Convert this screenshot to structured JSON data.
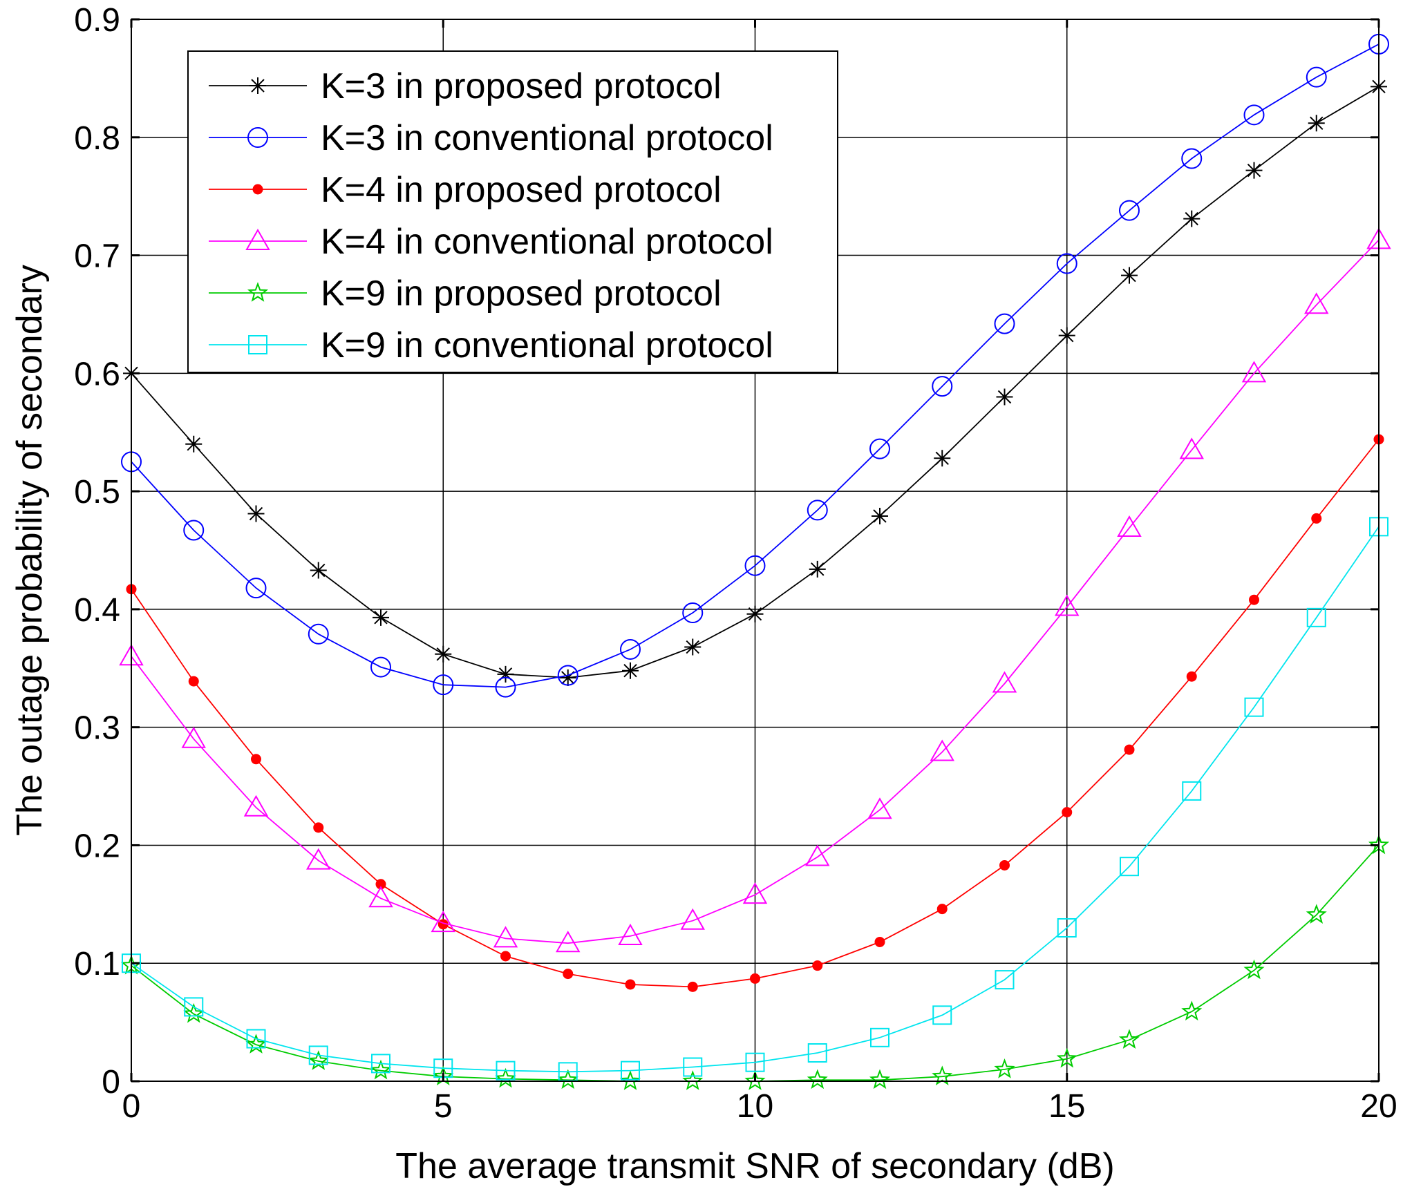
{
  "chart_data": {
    "type": "line",
    "title": "",
    "xlabel": "The average transmit SNR of secondary (dB)",
    "ylabel": "The outage probability of secondary",
    "xlim": [
      0,
      20
    ],
    "ylim": [
      0,
      0.9
    ],
    "xticks": [
      0,
      5,
      10,
      15,
      20
    ],
    "xtick_labels": [
      "0",
      "5",
      "10",
      "15",
      "20"
    ],
    "yticks": [
      0,
      0.1,
      0.2,
      0.3,
      0.4,
      0.5,
      0.6,
      0.7,
      0.8,
      0.9
    ],
    "ytick_labels": [
      "0",
      "0.1",
      "0.2",
      "0.3",
      "0.4",
      "0.5",
      "0.6",
      "0.7",
      "0.8",
      "0.9"
    ],
    "grid": true,
    "legend_position": "top-left",
    "x": [
      0,
      1,
      2,
      3,
      4,
      5,
      6,
      7,
      8,
      9,
      10,
      11,
      12,
      13,
      14,
      15,
      16,
      17,
      18,
      19,
      20
    ],
    "series": [
      {
        "name": "K=3 in proposed protocol",
        "color": "#000000",
        "marker": "asterisk",
        "values": [
          0.6,
          0.54,
          0.481,
          0.433,
          0.393,
          0.362,
          0.345,
          0.342,
          0.348,
          0.368,
          0.396,
          0.434,
          0.479,
          0.528,
          0.58,
          0.632,
          0.683,
          0.731,
          0.772,
          0.812,
          0.843
        ]
      },
      {
        "name": "K=3 in conventional protocol",
        "color": "#0000FF",
        "marker": "circle",
        "values": [
          0.525,
          0.467,
          0.418,
          0.379,
          0.351,
          0.336,
          0.334,
          0.344,
          0.366,
          0.397,
          0.437,
          0.484,
          0.536,
          0.589,
          0.642,
          0.693,
          0.738,
          0.782,
          0.819,
          0.851,
          0.879
        ]
      },
      {
        "name": "K=4 in proposed protocol",
        "color": "#FF0000",
        "marker": "filled-circle",
        "values": [
          0.417,
          0.339,
          0.273,
          0.215,
          0.167,
          0.133,
          0.106,
          0.091,
          0.082,
          0.08,
          0.087,
          0.098,
          0.118,
          0.146,
          0.183,
          0.228,
          0.281,
          0.343,
          0.408,
          0.477,
          0.544
        ]
      },
      {
        "name": "K=4 in conventional protocol",
        "color": "#FF00FF",
        "marker": "triangle",
        "values": [
          0.36,
          0.29,
          0.232,
          0.187,
          0.155,
          0.134,
          0.121,
          0.117,
          0.123,
          0.136,
          0.158,
          0.19,
          0.23,
          0.279,
          0.337,
          0.402,
          0.469,
          0.535,
          0.6,
          0.658,
          0.713
        ]
      },
      {
        "name": "K=9 in proposed protocol",
        "color": "#00CC00",
        "marker": "pentagram",
        "values": [
          0.098,
          0.057,
          0.031,
          0.017,
          0.009,
          0.004,
          0.002,
          0.001,
          0.0,
          0.0,
          0.0,
          0.001,
          0.001,
          0.004,
          0.01,
          0.019,
          0.035,
          0.059,
          0.094,
          0.141,
          0.2
        ]
      },
      {
        "name": "K=9 in conventional protocol",
        "color": "#00E5EE",
        "marker": "square",
        "values": [
          0.1,
          0.063,
          0.036,
          0.022,
          0.015,
          0.011,
          0.009,
          0.008,
          0.009,
          0.012,
          0.016,
          0.024,
          0.037,
          0.056,
          0.086,
          0.13,
          0.182,
          0.246,
          0.317,
          0.393,
          0.47
        ]
      }
    ]
  }
}
